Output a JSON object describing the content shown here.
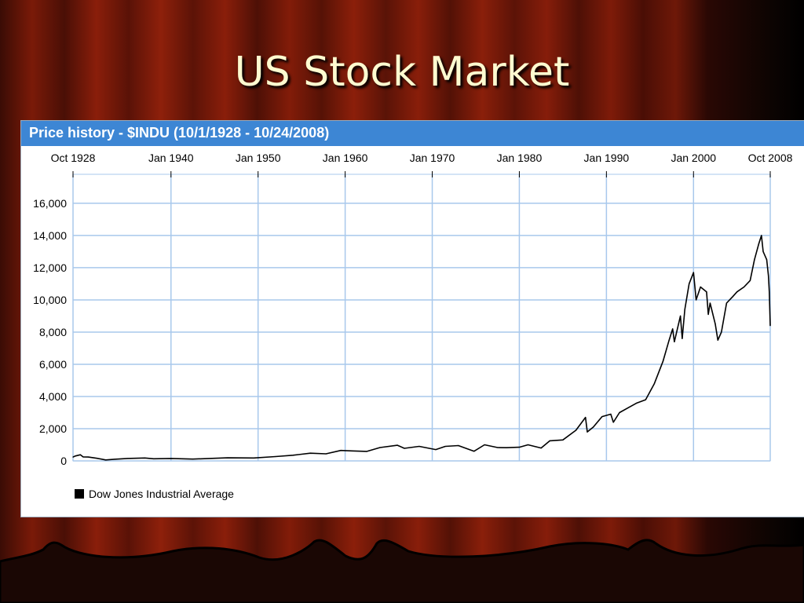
{
  "slide": {
    "title": "US Stock Market"
  },
  "chart_data": {
    "type": "line",
    "title": "Price history - $INDU (10/1/1928 - 10/24/2008)",
    "xlabel": "",
    "ylabel": "",
    "xlim": [
      1928.75,
      2008.81
    ],
    "ylim": [
      0,
      17800
    ],
    "x_ticks": [
      {
        "label": "Oct 1928",
        "value": 1928.75
      },
      {
        "label": "Jan 1940",
        "value": 1940.0
      },
      {
        "label": "Jan 1950",
        "value": 1950.0
      },
      {
        "label": "Jan 1960",
        "value": 1960.0
      },
      {
        "label": "Jan 1970",
        "value": 1970.0
      },
      {
        "label": "Jan 1980",
        "value": 1980.0
      },
      {
        "label": "Jan 1990",
        "value": 1990.0
      },
      {
        "label": "Jan 2000",
        "value": 2000.0
      },
      {
        "label": "Oct 2008",
        "value": 2008.81
      }
    ],
    "y_ticks": [
      0,
      2000,
      4000,
      6000,
      8000,
      10000,
      12000,
      14000,
      16000
    ],
    "y_tick_labels": [
      "0",
      "2,000",
      "4,000",
      "6,000",
      "8,000",
      "10,000",
      "12,000",
      "14,000",
      "16,000"
    ],
    "grid": true,
    "legend_position": "bottom-left",
    "series": [
      {
        "name": "Dow Jones Industrial Average",
        "color": "#000000",
        "x": [
          1928.75,
          1929.0,
          1929.6,
          1929.9,
          1930.5,
          1931.5,
          1932.5,
          1933.5,
          1935.0,
          1937.0,
          1938.0,
          1940.0,
          1942.5,
          1945.0,
          1946.5,
          1949.5,
          1952.0,
          1954.0,
          1956.0,
          1957.8,
          1959.5,
          1960.8,
          1962.5,
          1964.0,
          1966.0,
          1966.8,
          1968.5,
          1970.4,
          1971.5,
          1973.0,
          1974.8,
          1976.0,
          1977.5,
          1978.5,
          1980.0,
          1981.0,
          1982.5,
          1983.5,
          1985.0,
          1986.5,
          1987.6,
          1987.8,
          1988.5,
          1989.5,
          1990.5,
          1990.8,
          1991.5,
          1992.5,
          1993.5,
          1994.5,
          1995.5,
          1996.5,
          1997.2,
          1997.6,
          1997.8,
          1998.5,
          1998.7,
          1999.0,
          1999.5,
          2000.0,
          2000.3,
          2000.8,
          2001.5,
          2001.7,
          2001.9,
          2002.5,
          2002.8,
          2003.2,
          2003.8,
          2004.5,
          2005.0,
          2005.8,
          2006.5,
          2007.0,
          2007.5,
          2007.8,
          2008.0,
          2008.4,
          2008.6,
          2008.7,
          2008.81
        ],
        "values": [
          240,
          300,
          380,
          250,
          240,
          160,
          60,
          100,
          150,
          180,
          130,
          150,
          110,
          160,
          190,
          180,
          270,
          350,
          480,
          440,
          650,
          620,
          590,
          830,
          970,
          780,
          900,
          700,
          900,
          950,
          600,
          1000,
          830,
          820,
          850,
          1000,
          800,
          1250,
          1300,
          1900,
          2700,
          1800,
          2100,
          2750,
          2900,
          2400,
          3000,
          3300,
          3600,
          3800,
          4800,
          6200,
          7500,
          8200,
          7400,
          9000,
          7600,
          9400,
          11000,
          11700,
          10000,
          10800,
          10500,
          9100,
          9800,
          8500,
          7500,
          8000,
          9800,
          10200,
          10500,
          10800,
          11200,
          12500,
          13500,
          14000,
          13000,
          12500,
          11500,
          10500,
          8400
        ]
      }
    ]
  }
}
